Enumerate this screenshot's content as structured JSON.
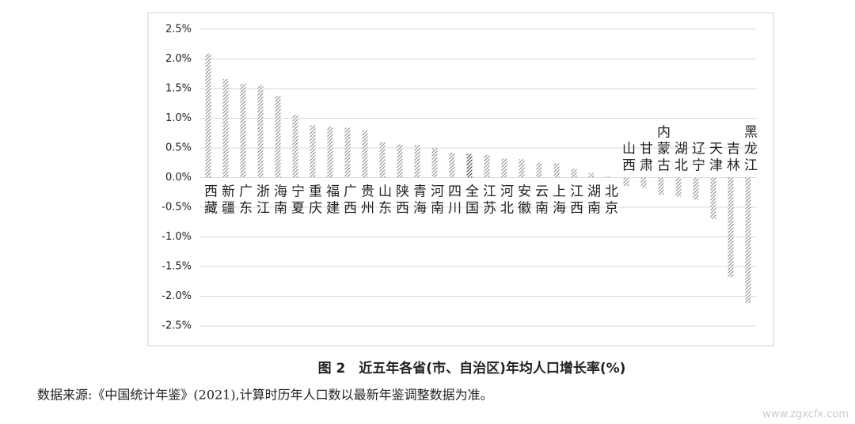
{
  "chart_data": {
    "type": "bar",
    "title": "图 2　近五年各省(市、自治区)年均人口增长率(%)",
    "source": "数据来源:《中国统计年鉴》(2021),计算时历年人口数以最新年鉴调整数据为准。",
    "categories": [
      "西藏",
      "新疆",
      "广东",
      "浙江",
      "海南",
      "宁夏",
      "重庆",
      "福建",
      "广西",
      "贵州",
      "山东",
      "陕西",
      "青海",
      "河南",
      "四川",
      "全国",
      "江苏",
      "河北",
      "安徽",
      "云南",
      "上海",
      "江西",
      "湖南",
      "北京",
      "山西",
      "甘肃",
      "内蒙古",
      "湖北",
      "辽宁",
      "天津",
      "吉林",
      "黑龙江"
    ],
    "values": [
      2.09,
      1.66,
      1.58,
      1.56,
      1.38,
      1.06,
      0.88,
      0.86,
      0.84,
      0.8,
      0.6,
      0.56,
      0.55,
      0.5,
      0.42,
      0.4,
      0.38,
      0.32,
      0.31,
      0.25,
      0.24,
      0.15,
      0.08,
      0.02,
      -0.14,
      -0.17,
      -0.29,
      -0.32,
      -0.37,
      -0.7,
      -1.68,
      -2.11
    ],
    "color": "#888888",
    "highlight": {
      "category": "全国",
      "color": "#333333"
    },
    "ylim": [
      -2.5,
      2.5
    ],
    "yticks": [
      {
        "value": -2.5,
        "label": "-2.5%"
      },
      {
        "value": -2.0,
        "label": "-2.0%"
      },
      {
        "value": -1.5,
        "label": "-1.5%"
      },
      {
        "value": -1.0,
        "label": "-1.0%"
      },
      {
        "value": -0.5,
        "label": "-0.5%"
      },
      {
        "value": 0,
        "label": "0.0%"
      },
      {
        "value": 0.5,
        "label": "0.5%"
      },
      {
        "value": 1.0,
        "label": "1.0%"
      },
      {
        "value": 1.5,
        "label": "1.5%"
      },
      {
        "value": 2.0,
        "label": "2.0%"
      },
      {
        "value": 2.5,
        "label": "2.5%"
      }
    ],
    "grid": true
  },
  "watermark": "www.zgxcfx.com"
}
